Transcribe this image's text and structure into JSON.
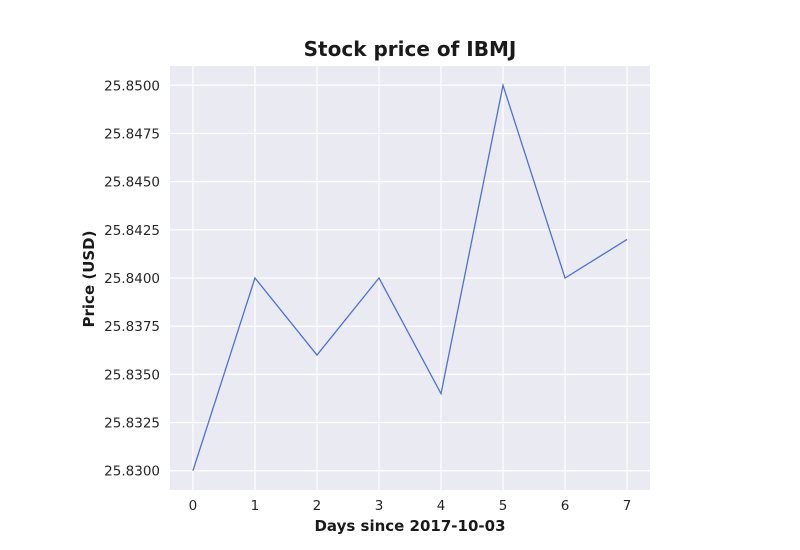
{
  "chart_data": {
    "type": "line",
    "title": "Stock price of IBMJ",
    "xlabel": "Days since 2017-10-03",
    "ylabel": "Price (USD)",
    "x": [
      0,
      1,
      2,
      3,
      4,
      5,
      6,
      7
    ],
    "series": [
      {
        "values": [
          25.83,
          25.84,
          25.836,
          25.84,
          25.834,
          25.85,
          25.84,
          25.842
        ]
      }
    ],
    "xticks": [
      "0",
      "1",
      "2",
      "3",
      "4",
      "5",
      "6",
      "7"
    ],
    "yticks": [
      "25.8300",
      "25.8325",
      "25.8350",
      "25.8375",
      "25.8400",
      "25.8425",
      "25.8450",
      "25.8475",
      "25.8500"
    ],
    "xlim": [
      -0.37,
      7.37
    ],
    "ylim": [
      25.829,
      25.851
    ],
    "grid": true,
    "colors": {
      "background": "#eaeaf2",
      "grid": "#ffffff",
      "line": "#4c72d0"
    }
  }
}
